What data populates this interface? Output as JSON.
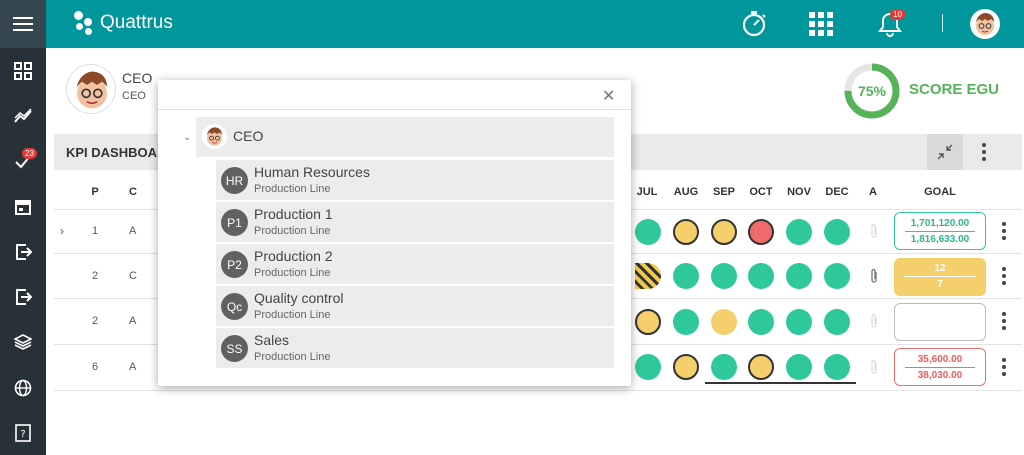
{
  "app": {
    "name": "Quattrus"
  },
  "sidebar": {
    "task_badge": "23"
  },
  "topbar": {
    "notifications": "10"
  },
  "profile": {
    "title": "CEO",
    "subtitle": "CEO"
  },
  "score": {
    "percent": "75%",
    "value": 0.75,
    "label": "SCORE EGU",
    "color": "#56b35a"
  },
  "dashboard": {
    "title": "KPI DASHBOA"
  },
  "table": {
    "headers_left": [
      "P",
      "C"
    ],
    "headers_right": [
      "JUL",
      "AUG",
      "SEP",
      "OCT",
      "NOV",
      "DEC",
      "A",
      "GOAL"
    ],
    "rows": [
      {
        "p": "1",
        "c": "A",
        "goal_top": "1,701,120.00",
        "goal_bottom": "1,816,633.00"
      },
      {
        "p": "2",
        "c": "C",
        "goal_top": "12",
        "goal_bottom": "7"
      },
      {
        "p": "2",
        "c": "A",
        "goal_top": "",
        "goal_bottom": ""
      },
      {
        "p": "6",
        "c": "A",
        "goal_top": "35,600.00",
        "goal_bottom": "38,030.00"
      }
    ]
  },
  "modal": {
    "root": {
      "label": "CEO"
    },
    "nodes": [
      {
        "initials": "HR",
        "name": "Human Resources",
        "sub": "Production Line"
      },
      {
        "initials": "P1",
        "name": "Production 1",
        "sub": "Production Line"
      },
      {
        "initials": "P2",
        "name": "Production 2",
        "sub": "Production Line"
      },
      {
        "initials": "Qc",
        "name": "Quality control",
        "sub": "Production Line"
      },
      {
        "initials": "SS",
        "name": "Sales",
        "sub": "Production Line"
      }
    ]
  },
  "colors": {
    "teal": "#00969b",
    "green": "#2fc89b",
    "yellow": "#f5cf6b",
    "red": "#f26b6b",
    "sidebar": "#263238"
  }
}
